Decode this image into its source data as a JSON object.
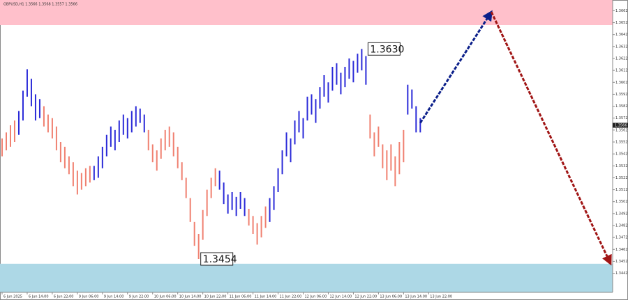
{
  "chart_data": {
    "type": "bars",
    "title": "GBPUSD,H1 1.3566 1.3568 1.3557 1.3566",
    "ylim": [
      1.3426,
      1.3671
    ],
    "yticks": [
      1.3442,
      1.3452,
      1.3462,
      1.3472,
      1.3482,
      1.3492,
      1.3502,
      1.3512,
      1.3522,
      1.3532,
      1.3542,
      1.3552,
      1.3562,
      1.3572,
      1.3582,
      1.3592,
      1.3602,
      1.3612,
      1.3622,
      1.3632,
      1.3642,
      1.3652,
      1.3662
    ],
    "xlim": [
      -0.5,
      146
    ],
    "xticks": [
      {
        "value": 0,
        "label": "6 Jun 2025"
      },
      {
        "value": 6,
        "label": "6 Jun 14:00"
      },
      {
        "value": 12,
        "label": "6 Jun 22:00"
      },
      {
        "value": 18,
        "label": "9 Jun 06:00"
      },
      {
        "value": 24,
        "label": "9 Jun 14:00"
      },
      {
        "value": 30,
        "label": "9 Jun 22:00"
      },
      {
        "value": 36,
        "label": "10 Jun 06:00"
      },
      {
        "value": 42,
        "label": "10 Jun 14:00"
      },
      {
        "value": 48,
        "label": "10 Jun 22:00"
      },
      {
        "value": 54,
        "label": "11 Jun 06:00"
      },
      {
        "value": 60,
        "label": "11 Jun 14:00"
      },
      {
        "value": 66,
        "label": "11 Jun 22:00"
      },
      {
        "value": 72,
        "label": "12 Jun 06:00"
      },
      {
        "value": 78,
        "label": "12 Jun 14:00"
      },
      {
        "value": 84,
        "label": "12 Jun 22:00"
      },
      {
        "value": 90,
        "label": "13 Jun 06:00"
      },
      {
        "value": 96,
        "label": "13 Jun 14:00"
      },
      {
        "value": 102,
        "label": "13 Jun 22:00"
      }
    ],
    "zones": [
      {
        "from": 1.365,
        "to": 1.3671,
        "color": "#ffc0cb"
      },
      {
        "from": 1.3426,
        "to": 1.345,
        "color": "#add8e6"
      }
    ],
    "segments": [
      {
        "color": "#f08070",
        "low": [
          1.354,
          1.3545,
          1.3548,
          1.3552
        ],
        "high": [
          1.3555,
          1.356,
          1.3566,
          1.357
        ]
      },
      {
        "color": "#2a2ad8",
        "low": [
          1.3558,
          1.357,
          1.359,
          1.3582,
          1.357,
          1.3572
        ],
        "high": [
          1.3578,
          1.3595,
          1.3613,
          1.3605,
          1.3592,
          1.3588
        ]
      },
      {
        "color": "#f08070",
        "low": [
          1.3565,
          1.356,
          1.3555,
          1.3545,
          1.3535,
          1.353,
          1.3525,
          1.3515,
          1.3508,
          1.3512,
          1.3515,
          1.3518
        ],
        "high": [
          1.3582,
          1.3575,
          1.3572,
          1.3565,
          1.3552,
          1.3548,
          1.354,
          1.3535,
          1.3528,
          1.3526,
          1.353,
          1.3532
        ]
      },
      {
        "color": "#2a2ad8",
        "low": [
          1.352,
          1.3522,
          1.353,
          1.354,
          1.3548,
          1.3545,
          1.3552,
          1.3558,
          1.3555,
          1.356,
          1.3565,
          1.3568,
          1.356
        ],
        "high": [
          1.3532,
          1.354,
          1.3548,
          1.3558,
          1.3565,
          1.3562,
          1.357,
          1.3575,
          1.3572,
          1.3578,
          1.3582,
          1.358,
          1.3575
        ]
      },
      {
        "color": "#f08070",
        "low": [
          1.3545,
          1.3535,
          1.3528,
          1.3538,
          1.3545,
          1.3548,
          1.354,
          1.353,
          1.352,
          1.3505,
          1.3485,
          1.3465,
          1.3454,
          1.347,
          1.349,
          1.3505,
          1.3515
        ],
        "high": [
          1.3562,
          1.355,
          1.3545,
          1.3555,
          1.3562,
          1.3565,
          1.356,
          1.3548,
          1.3535,
          1.3522,
          1.3505,
          1.3485,
          1.3475,
          1.3495,
          1.3512,
          1.3522,
          1.353
        ]
      },
      {
        "color": "#2a2ad8",
        "low": [
          1.3512,
          1.35,
          1.3492,
          1.3495,
          1.349,
          1.3496,
          1.349
        ],
        "high": [
          1.3528,
          1.3518,
          1.3508,
          1.351,
          1.3506,
          1.351,
          1.3505
        ]
      },
      {
        "color": "#f08070",
        "low": [
          1.3482,
          1.3475,
          1.3466,
          1.3472,
          1.348
        ],
        "high": [
          1.3496,
          1.349,
          1.3484,
          1.349,
          1.3498
        ]
      },
      {
        "color": "#2a2ad8",
        "low": [
          1.3485,
          1.3495,
          1.351,
          1.3525,
          1.354,
          1.3535,
          1.355,
          1.356,
          1.3555,
          1.357,
          1.3575,
          1.3568,
          1.358,
          1.359,
          1.3585,
          1.3595,
          1.36,
          1.3592,
          1.3598,
          1.3605,
          1.3602,
          1.361,
          1.3612,
          1.36
        ],
        "high": [
          1.3505,
          1.3515,
          1.353,
          1.3545,
          1.356,
          1.3555,
          1.357,
          1.3578,
          1.3572,
          1.359,
          1.3592,
          1.3588,
          1.3598,
          1.3608,
          1.3602,
          1.3615,
          1.3618,
          1.361,
          1.3615,
          1.3622,
          1.362,
          1.3626,
          1.363,
          1.3624
        ]
      },
      {
        "color": "#f08070",
        "low": [
          1.3555,
          1.354,
          1.3548,
          1.353,
          1.352,
          1.3528,
          1.3515,
          1.3525,
          1.3535
        ],
        "high": [
          1.3575,
          1.356,
          1.3565,
          1.355,
          1.3545,
          1.355,
          1.354,
          1.3552,
          1.3562
        ]
      },
      {
        "color": "#2a2ad8",
        "low": [
          1.3575,
          1.358,
          1.356,
          1.356
        ],
        "high": [
          1.36,
          1.3596,
          1.3582,
          1.3572
        ]
      }
    ],
    "forecast": [
      {
        "color": "#0b1f8a",
        "x": [
          100,
          117
        ],
        "y": [
          1.3568,
          1.3661
        ]
      },
      {
        "color": "#a01515",
        "x": [
          117,
          145.5
        ],
        "y": [
          1.3661,
          1.345
        ]
      }
    ],
    "annotations": [
      {
        "value": 1.363,
        "label": "1.3630",
        "x": 87
      },
      {
        "value": 1.3454,
        "label": "1.3454",
        "x": 47
      }
    ],
    "price_tag": {
      "value": 1.3566,
      "label": "1.3566"
    }
  }
}
